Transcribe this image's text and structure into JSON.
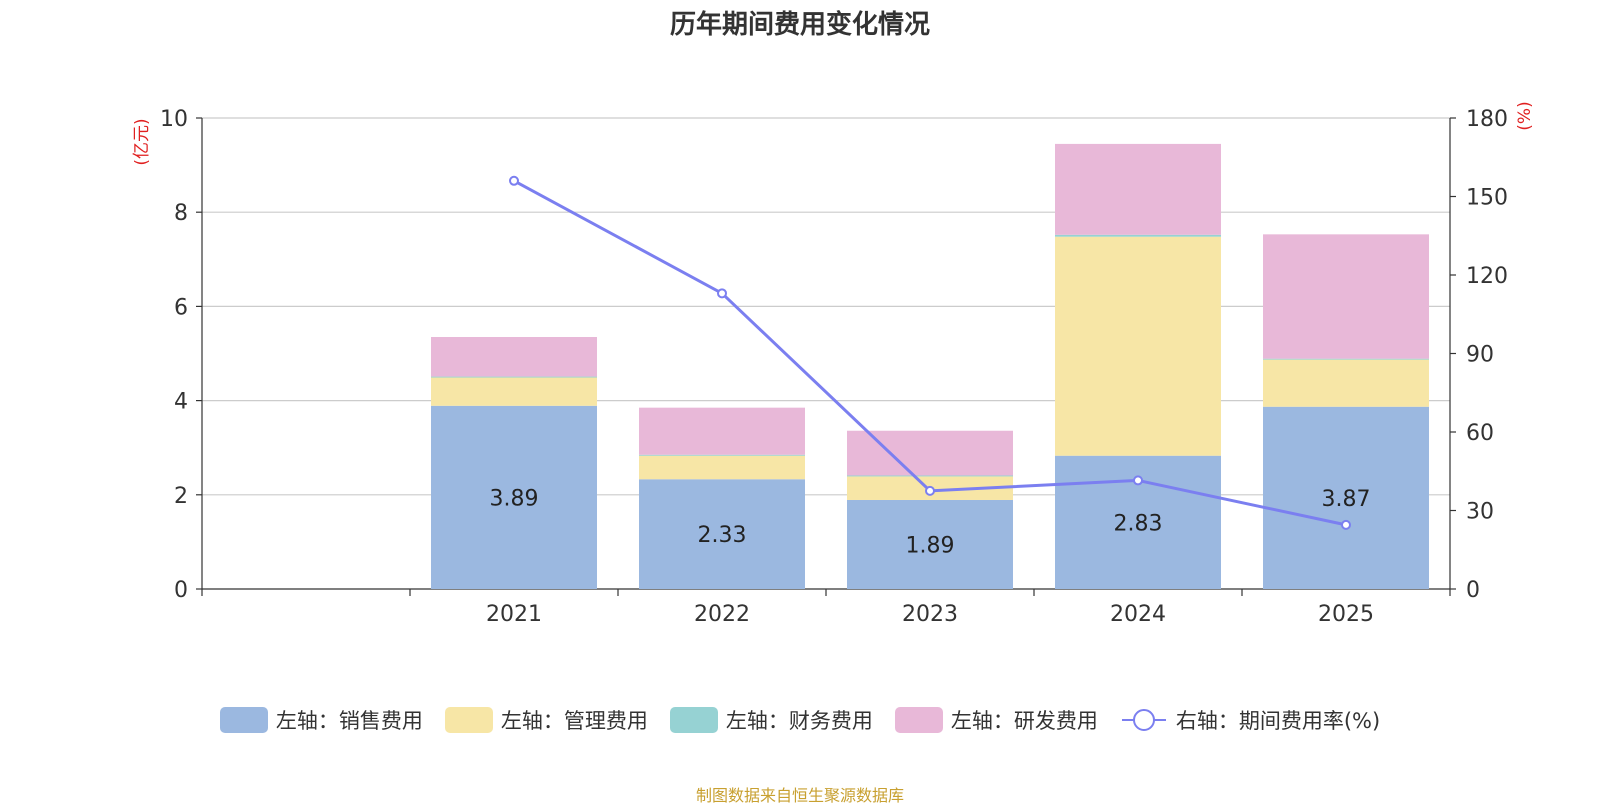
{
  "chart_data": {
    "type": "bar",
    "title": "历年期间费用变化情况",
    "categories": [
      "",
      "2021",
      "2022",
      "2023",
      "2024",
      "2025"
    ],
    "left_axis": {
      "label": "(亿元)",
      "range": [
        0,
        10
      ],
      "ticks": [
        0,
        2,
        4,
        6,
        8,
        10
      ]
    },
    "right_axis": {
      "label": "(%)",
      "range": [
        0,
        180
      ],
      "ticks": [
        0,
        30,
        60,
        90,
        120,
        150,
        180
      ]
    },
    "grid": true,
    "series": [
      {
        "name": "左轴：销售费用",
        "axis": "left",
        "type": "bar",
        "color": "#9bb8e0",
        "values": [
          null,
          3.89,
          2.33,
          1.89,
          2.83,
          3.87
        ],
        "labels": [
          "",
          "3.89",
          "2.33",
          "1.89",
          "2.83",
          "3.87"
        ]
      },
      {
        "name": "左轴：管理费用",
        "axis": "left",
        "type": "bar",
        "color": "#f7e6a6",
        "values": [
          null,
          0.6,
          0.5,
          0.5,
          4.65,
          1.0
        ]
      },
      {
        "name": "左轴：财务费用",
        "axis": "left",
        "type": "bar",
        "color": "#96d2d3",
        "values": [
          null,
          0.02,
          0.02,
          0.02,
          0.04,
          0.02
        ]
      },
      {
        "name": "左轴：研发费用",
        "axis": "left",
        "type": "bar",
        "color": "#e8b8d8",
        "values": [
          null,
          0.84,
          1.0,
          0.95,
          1.93,
          2.64
        ]
      },
      {
        "name": "右轴：期间费用率(%)",
        "axis": "right",
        "type": "line",
        "color": "#7b7ff0",
        "values": [
          null,
          156,
          113,
          37.5,
          41.5,
          24.5
        ]
      }
    ],
    "legend_position": "bottom-center",
    "source": "制图数据来自恒生聚源数据库"
  }
}
